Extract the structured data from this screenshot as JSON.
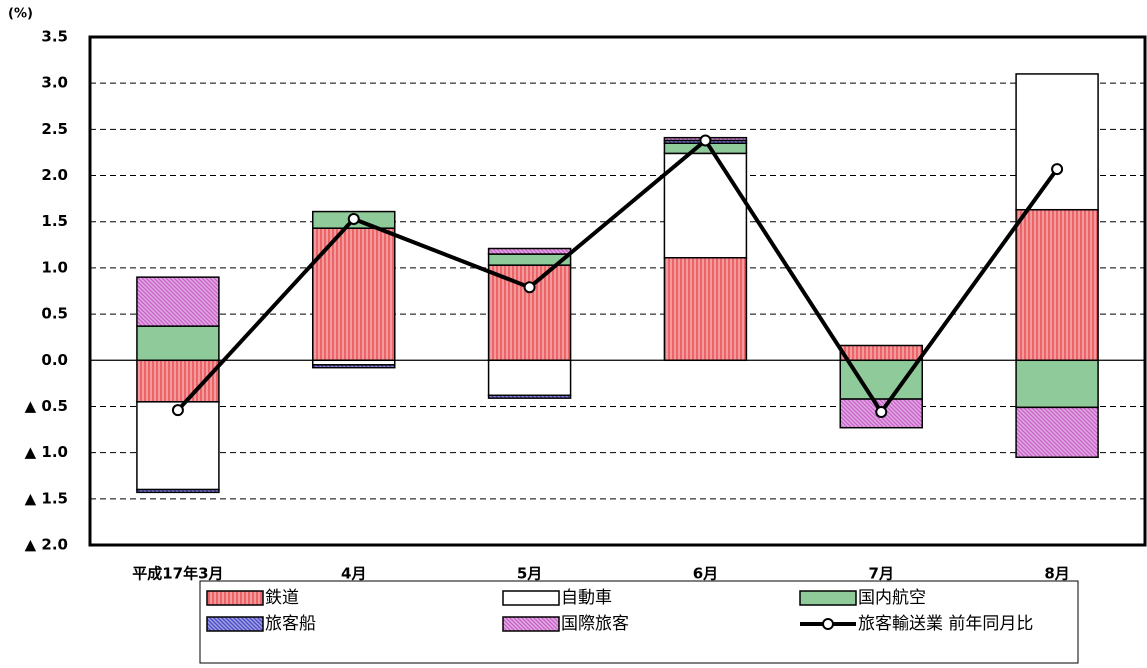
{
  "chart_data": {
    "type": "bar",
    "y_label": "(%)",
    "categories": [
      "平成17年3月",
      "4月",
      "5月",
      "6月",
      "7月",
      "8月"
    ],
    "series": [
      {
        "name": "鉄道",
        "type": "bar",
        "color": "#e8474a",
        "pattern": "vertical",
        "values": [
          -0.45,
          1.43,
          1.03,
          1.11,
          0.16,
          1.63
        ]
      },
      {
        "name": "自動車",
        "type": "bar",
        "color": "#ffffff",
        "pattern": "none",
        "values": [
          -0.95,
          -0.05,
          -0.38,
          1.13,
          0,
          1.47
        ]
      },
      {
        "name": "国内航空",
        "type": "bar",
        "color": "#8fca9a",
        "pattern": "none",
        "values": [
          0.37,
          0.18,
          0.12,
          0.11,
          -0.42,
          -0.51
        ]
      },
      {
        "name": "旅客船",
        "type": "bar",
        "color": "#4b4bc8",
        "pattern": "diagonal",
        "values": [
          -0.03,
          -0.03,
          -0.03,
          0.03,
          0,
          0
        ]
      },
      {
        "name": "国際旅客",
        "type": "bar",
        "color": "#c860c8",
        "pattern": "diagonal",
        "values": [
          0.53,
          0,
          0.06,
          0.03,
          -0.31,
          -0.54
        ]
      },
      {
        "name": "旅客輸送業 前年同月比",
        "type": "line",
        "color": "#000000",
        "values": [
          -0.54,
          1.53,
          0.79,
          2.38,
          -0.56,
          2.07
        ]
      }
    ],
    "ylim": [
      -2.0,
      3.5
    ],
    "yticks": [
      {
        "value": -2.0,
        "label": "▲ 2.0"
      },
      {
        "value": -1.5,
        "label": "▲ 1.5"
      },
      {
        "value": -1.0,
        "label": "▲ 1.0"
      },
      {
        "value": -0.5,
        "label": "▲ 0.5"
      },
      {
        "value": 0.0,
        "label": "0.0"
      },
      0.5,
      {
        "value": 1.0,
        "label": "1.0"
      },
      1.5,
      {
        "value": 2.0,
        "label": "2.0"
      },
      2.5,
      {
        "value": 3.0,
        "label": "3.0"
      },
      3.5
    ],
    "grid": true,
    "legend": "bottom"
  }
}
